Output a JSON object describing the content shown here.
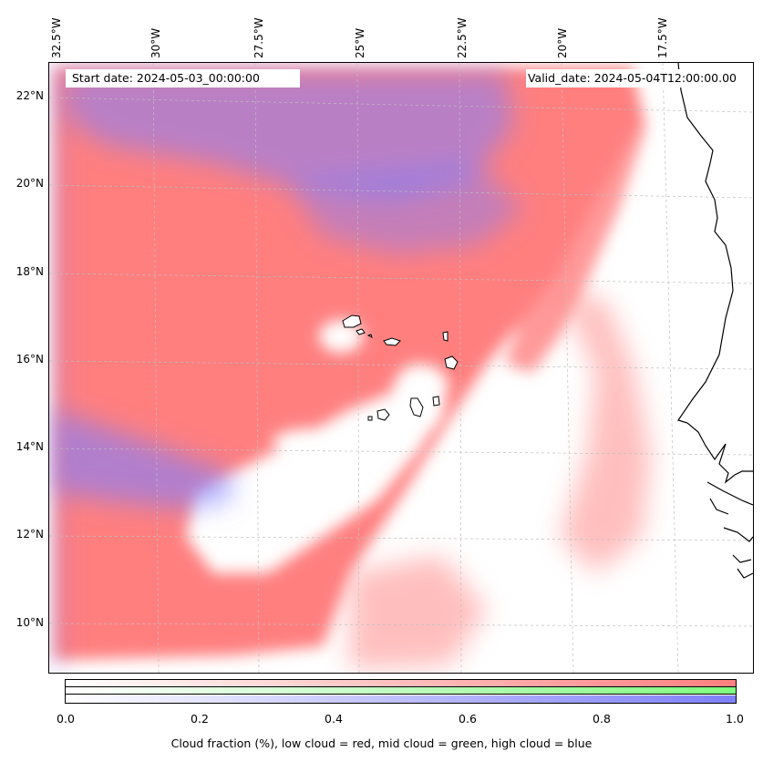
{
  "map": {
    "start_date": "Start date: 2024-05-03_00:00:00",
    "valid_date": "Valid_date: 2024-05-04T12:00:00.00",
    "lon_labels": [
      "32.5°W",
      "30°W",
      "27.5°W",
      "25°W",
      "22.5°W",
      "20°W",
      "17.5°W"
    ],
    "lat_labels": [
      "22°N",
      "20°N",
      "18°N",
      "16°N",
      "14°N",
      "12°N",
      "10°N"
    ],
    "low_cloud_color": "#ff7f7f",
    "mid_cloud_color": "#7fff7f",
    "high_cloud_color": "#7f7fff",
    "coastline_color": "#000000"
  },
  "colorbar": {
    "ticks": [
      "0.0",
      "0.2",
      "0.4",
      "0.6",
      "0.8",
      "1.0"
    ],
    "label": "Cloud fraction (%), low cloud = red, mid cloud = green, high cloud = blue"
  }
}
